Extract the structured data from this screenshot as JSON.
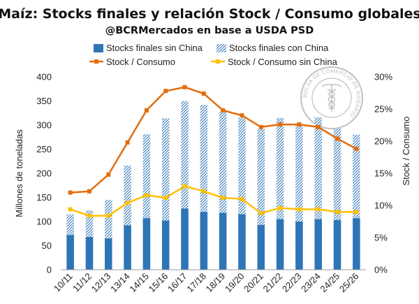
{
  "header": {
    "title": "Maíz: Stocks finales y relación Stock / Consumo globales",
    "subtitle": "@BCRMercados en base a USDA PSD"
  },
  "seal": {
    "text": "BOLSA DE COMERCIO DE ROSARIO",
    "icon": "caduceus-seal-icon"
  },
  "chart_data": {
    "type": "bar",
    "title": "Maíz: Stocks finales y relación Stock / Consumo globales",
    "subtitle": "@BCRMercados en base a USDA PSD",
    "categories": [
      "10/11",
      "11/12",
      "12/13",
      "13/14",
      "14/15",
      "15/16",
      "16/17",
      "17/18",
      "18/19",
      "19/20",
      "20/21",
      "21/22",
      "22/23",
      "23/24",
      "24/25",
      "25/26"
    ],
    "ylabel": "Millones de toneladas",
    "y2label": "Stock / Consumo",
    "ylim": [
      0,
      400
    ],
    "y2lim": [
      0,
      0.3
    ],
    "yticks": [
      "0",
      "50",
      "100",
      "150",
      "200",
      "250",
      "300",
      "350",
      "400"
    ],
    "y2ticks": [
      "0%",
      "5%",
      "10%",
      "15%",
      "20%",
      "25%",
      "30%"
    ],
    "grid": false,
    "legend_placement": "top",
    "series": [
      {
        "name": "Stocks finales sin China",
        "type": "bar",
        "axis": "left",
        "color": "#2e75b6",
        "values": [
          72,
          68,
          65,
          92,
          107,
          102,
          127,
          120,
          118,
          115,
          93,
          105,
          100,
          105,
          103,
          107
        ]
      },
      {
        "name": "Stocks finales con China",
        "type": "bar-hatched",
        "axis": "left",
        "color": "#2e75b6",
        "values": [
          115,
          123,
          145,
          216,
          281,
          314,
          350,
          342,
          327,
          315,
          292,
          315,
          299,
          316,
          293,
          280
        ]
      },
      {
        "name": "Stock / Consumo",
        "type": "line",
        "axis": "right",
        "color": "#e46c0a",
        "values": [
          0.12,
          0.122,
          0.148,
          0.198,
          0.248,
          0.278,
          0.284,
          0.274,
          0.248,
          0.24,
          0.222,
          0.226,
          0.226,
          0.222,
          0.204,
          0.188
        ]
      },
      {
        "name": "Stock / Consumo sin China",
        "type": "line",
        "axis": "right",
        "color": "#ffc000",
        "values": [
          0.094,
          0.084,
          0.084,
          0.104,
          0.116,
          0.112,
          0.13,
          0.122,
          0.112,
          0.11,
          0.088,
          0.096,
          0.094,
          0.094,
          0.09,
          0.09
        ]
      }
    ]
  }
}
